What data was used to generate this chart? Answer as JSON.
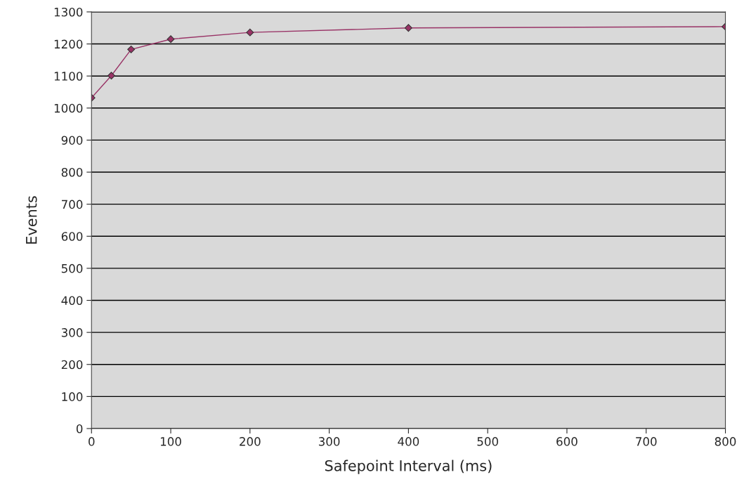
{
  "chart_data": {
    "type": "line",
    "xlabel": "Safepoint Interval (ms)",
    "ylabel": "Events",
    "x": [
      0,
      25,
      50,
      100,
      200,
      400,
      800
    ],
    "series": [
      {
        "color": "#993366",
        "values": [
          1032,
          1101,
          1183,
          1215,
          1236,
          1250,
          1254
        ]
      }
    ],
    "xlim": [
      0,
      800
    ],
    "xticks": [
      0,
      100,
      200,
      300,
      400,
      500,
      600,
      700,
      800
    ],
    "ylim": [
      0,
      1300
    ],
    "yticks": [
      0,
      100,
      200,
      300,
      400,
      500,
      600,
      700,
      800,
      900,
      1000,
      1100,
      1200,
      1300
    ],
    "grid": "y",
    "marker": "diamond",
    "line_style": "solid"
  }
}
